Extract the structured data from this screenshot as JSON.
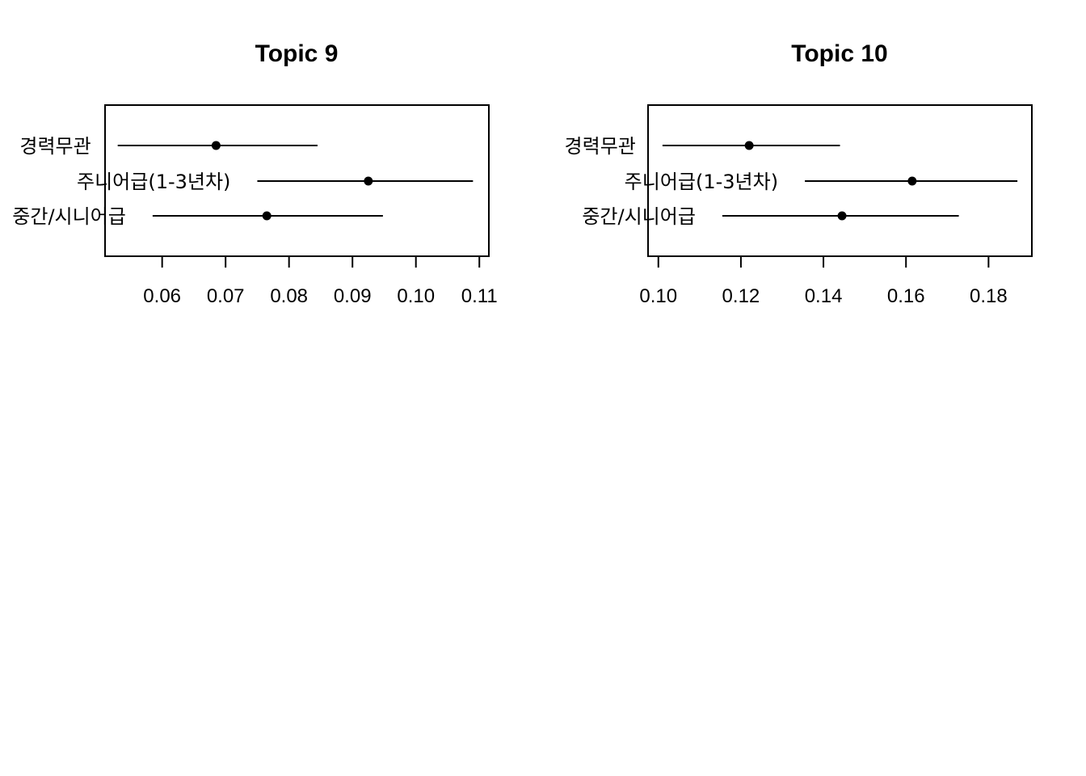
{
  "chart_data": [
    {
      "type": "point-range",
      "title": "Topic 9",
      "categories": [
        "경력무관",
        "주니어급(1-3년차)",
        "중간/시니어급"
      ],
      "points": [
        {
          "label": "경력무관",
          "estimate": 0.0685,
          "lower": 0.053,
          "upper": 0.0845
        },
        {
          "label": "주니어급(1-3년차)",
          "estimate": 0.0925,
          "lower": 0.075,
          "upper": 0.109
        },
        {
          "label": "중간/시니어급",
          "estimate": 0.0765,
          "lower": 0.0585,
          "upper": 0.0948
        }
      ],
      "x_ticks": [
        0.06,
        0.07,
        0.08,
        0.09,
        0.1,
        0.11
      ],
      "x_tick_labels": [
        "0.06",
        "0.07",
        "0.08",
        "0.09",
        "0.10",
        "0.11"
      ],
      "xlim": [
        0.051,
        0.1115
      ],
      "xlabel": "",
      "ylabel": "",
      "grid": false
    },
    {
      "type": "point-range",
      "title": "Topic 10",
      "categories": [
        "경력무관",
        "주니어급(1-3년차)",
        "중간/시니어급"
      ],
      "points": [
        {
          "label": "경력무관",
          "estimate": 0.122,
          "lower": 0.101,
          "upper": 0.144
        },
        {
          "label": "주니어급(1-3년차)",
          "estimate": 0.1615,
          "lower": 0.1355,
          "upper": 0.187
        },
        {
          "label": "중간/시니어급",
          "estimate": 0.1445,
          "lower": 0.1155,
          "upper": 0.1728
        }
      ],
      "x_ticks": [
        0.1,
        0.12,
        0.14,
        0.16,
        0.18
      ],
      "x_tick_labels": [
        "0.10",
        "0.12",
        "0.14",
        "0.16",
        "0.18"
      ],
      "xlim": [
        0.0975,
        0.1905
      ],
      "xlabel": "",
      "ylabel": "",
      "grid": false
    }
  ]
}
